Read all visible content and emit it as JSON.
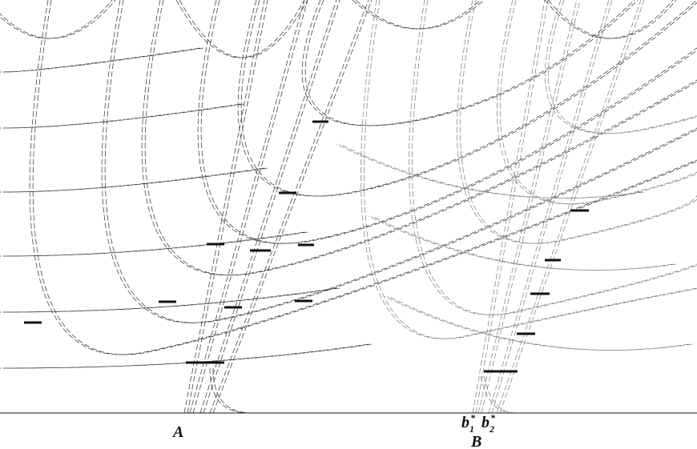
{
  "labels": {
    "a": "A",
    "b": "B",
    "b1": {
      "base": "b",
      "sub": "1",
      "sup": "*"
    },
    "b2": {
      "base": "b",
      "sub": "2",
      "sup": "*"
    }
  }
}
